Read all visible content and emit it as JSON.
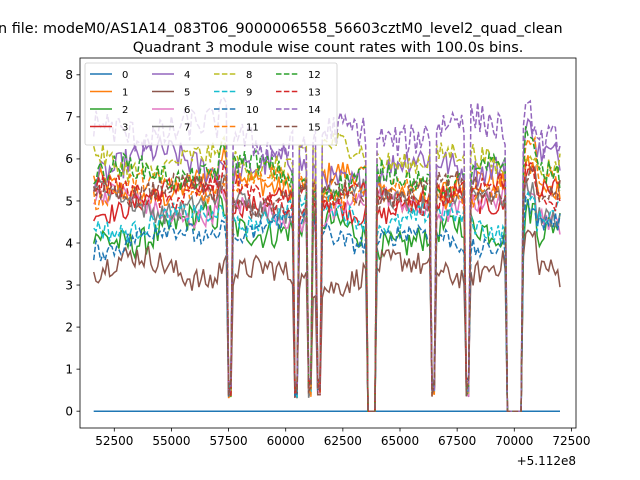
{
  "figure": {
    "suptitle": "n file: modeM0/AS1A14_083T06_9000006558_56603cztM0_level2_quad_clean"
  },
  "chart_data": {
    "type": "line",
    "title": "Quadrant 3 module wise count rates with 100.0s bins.",
    "xlabel": "",
    "ylabel": "",
    "offset_text": "+5.112e8",
    "xlim": [
      51000,
      72700
    ],
    "ylim": [
      -0.4,
      8.4
    ],
    "xticks": [
      52500,
      55000,
      57500,
      60000,
      62500,
      65000,
      67500,
      70000,
      72500
    ],
    "xtick_labels": [
      "52500",
      "55000",
      "57500",
      "60000",
      "62500",
      "65000",
      "67500",
      "70000",
      "72500"
    ],
    "yticks": [
      0,
      1,
      2,
      3,
      4,
      5,
      6,
      7,
      8
    ],
    "ytick_labels": [
      "0",
      "1",
      "2",
      "3",
      "4",
      "5",
      "6",
      "7",
      "8"
    ],
    "grid": false,
    "legend_position": "upper-left",
    "x_start": 51600,
    "x_end": 72000,
    "bin": 100,
    "gaps": [
      [
        57450,
        57650
      ],
      [
        60350,
        60550
      ],
      [
        60950,
        61150
      ],
      [
        61350,
        61550
      ],
      [
        63550,
        63950
      ],
      [
        66350,
        66550
      ],
      [
        67850,
        68050
      ],
      [
        69650,
        70350
      ]
    ],
    "series": [
      {
        "name": "0",
        "level": 0.0,
        "noise": 0.0,
        "color": "#1f77b4",
        "dash": "solid"
      },
      {
        "name": "1",
        "level": 5.4,
        "noise": 0.3,
        "color": "#ff7f0e",
        "dash": "solid"
      },
      {
        "name": "2",
        "level": 4.3,
        "noise": 0.35,
        "color": "#2ca02c",
        "dash": "solid"
      },
      {
        "name": "3",
        "level": 5.0,
        "noise": 0.25,
        "color": "#d62728",
        "dash": "solid"
      },
      {
        "name": "4",
        "level": 5.8,
        "noise": 0.35,
        "color": "#9467bd",
        "dash": "solid"
      },
      {
        "name": "5",
        "level": 3.3,
        "noise": 0.3,
        "color": "#8c564b",
        "dash": "solid"
      },
      {
        "name": "6",
        "level": 4.8,
        "noise": 0.25,
        "color": "#e377c2",
        "dash": "solid"
      },
      {
        "name": "7",
        "level": 5.0,
        "noise": 0.25,
        "color": "#7f7f7f",
        "dash": "solid"
      },
      {
        "name": "8",
        "level": 6.0,
        "noise": 0.3,
        "color": "#bcbd22",
        "dash": "dashed"
      },
      {
        "name": "9",
        "level": 4.6,
        "noise": 0.25,
        "color": "#17becf",
        "dash": "dashed"
      },
      {
        "name": "10",
        "level": 4.2,
        "noise": 0.25,
        "color": "#1f77b4",
        "dash": "dashed"
      },
      {
        "name": "11",
        "level": 5.3,
        "noise": 0.25,
        "color": "#ff7f0e",
        "dash": "dashed"
      },
      {
        "name": "12",
        "level": 5.6,
        "noise": 0.3,
        "color": "#2ca02c",
        "dash": "dashed"
      },
      {
        "name": "13",
        "level": 5.1,
        "noise": 0.25,
        "color": "#d62728",
        "dash": "dashed"
      },
      {
        "name": "14",
        "level": 6.6,
        "noise": 0.4,
        "color": "#9467bd",
        "dash": "dashed"
      },
      {
        "name": "15",
        "level": 5.2,
        "noise": 0.25,
        "color": "#8c564b",
        "dash": "dashed"
      }
    ]
  }
}
